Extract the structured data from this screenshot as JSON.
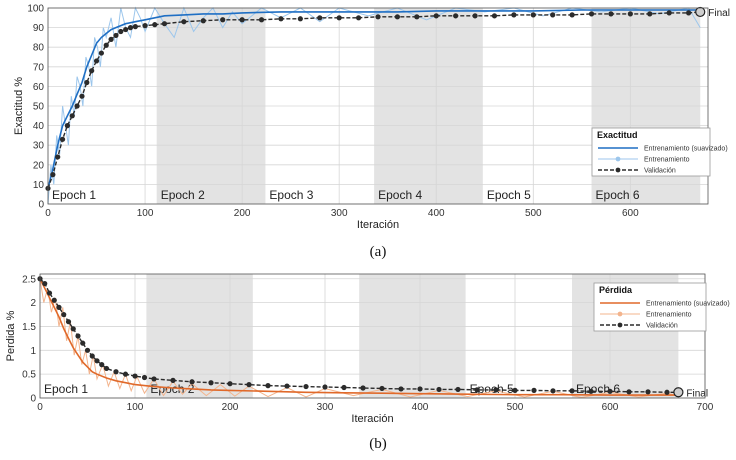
{
  "chart_data": [
    {
      "type": "line",
      "caption": "(a)",
      "xlabel": "Iteración",
      "ylabel": "Exactitud %",
      "xlim": [
        0,
        680
      ],
      "ylim": [
        0,
        100
      ],
      "xticks": [
        0,
        100,
        200,
        300,
        400,
        500,
        600
      ],
      "yticks": [
        0,
        10,
        20,
        30,
        40,
        50,
        60,
        70,
        80,
        90,
        100
      ],
      "grid": true,
      "epochs": [
        {
          "label": "Epoch 1",
          "start": 0,
          "end": 112,
          "shaded": false
        },
        {
          "label": "Epoch 2",
          "start": 112,
          "end": 224,
          "shaded": true
        },
        {
          "label": "Epoch 3",
          "start": 224,
          "end": 336,
          "shaded": false
        },
        {
          "label": "Epoch 4",
          "start": 336,
          "end": 448,
          "shaded": true
        },
        {
          "label": "Epoch 5",
          "start": 448,
          "end": 560,
          "shaded": false
        },
        {
          "label": "Epoch 6",
          "start": 560,
          "end": 672,
          "shaded": true
        }
      ],
      "legend": {
        "title": "Exactitud",
        "placement": "right",
        "entries": [
          "Entrenamiento (suavizado)",
          "Entrenamiento",
          "Validación"
        ]
      },
      "final_label": "Final",
      "series": [
        {
          "name": "Entrenamiento (suavizado)",
          "color": "#1f6fc4",
          "x": [
            0,
            5,
            10,
            15,
            20,
            25,
            30,
            35,
            40,
            45,
            50,
            55,
            60,
            65,
            70,
            80,
            90,
            100,
            110,
            120,
            140,
            160,
            180,
            200,
            240,
            280,
            320,
            360,
            400,
            450,
            500,
            550,
            600,
            640,
            672
          ],
          "y": [
            8,
            18,
            30,
            40,
            45,
            50,
            56,
            62,
            70,
            76,
            82,
            85,
            87,
            89,
            90,
            92,
            93,
            94,
            95,
            96,
            96.5,
            97,
            97,
            97.5,
            98,
            98,
            98,
            98,
            98.5,
            98.5,
            98.5,
            99,
            99,
            99,
            99
          ]
        },
        {
          "name": "Entrenamiento",
          "color": "#9cc6ec",
          "x": [
            0,
            3,
            6,
            9,
            12,
            15,
            18,
            21,
            24,
            27,
            30,
            33,
            36,
            39,
            42,
            45,
            48,
            51,
            54,
            57,
            60,
            65,
            70,
            75,
            80,
            85,
            90,
            95,
            100,
            110,
            120,
            130,
            140,
            150,
            160,
            170,
            180,
            190,
            200,
            220,
            240,
            260,
            280,
            300,
            330,
            360,
            390,
            420,
            450,
            480,
            510,
            540,
            570,
            600,
            630,
            660,
            672
          ],
          "y": [
            0,
            20,
            10,
            35,
            25,
            50,
            40,
            30,
            55,
            45,
            65,
            60,
            50,
            75,
            70,
            60,
            85,
            80,
            70,
            90,
            85,
            95,
            80,
            100,
            90,
            85,
            100,
            95,
            88,
            100,
            92,
            85,
            100,
            88,
            95,
            100,
            90,
            98,
            92,
            100,
            95,
            100,
            93,
            100,
            96,
            100,
            94,
            100,
            98,
            100,
            96,
            100,
            98,
            100,
            97,
            100,
            90
          ]
        },
        {
          "name": "Validación",
          "color": "#2b2b2b",
          "x": [
            0,
            5,
            10,
            15,
            20,
            25,
            30,
            35,
            40,
            45,
            50,
            55,
            60,
            65,
            70,
            75,
            80,
            85,
            90,
            100,
            110,
            120,
            140,
            160,
            180,
            200,
            220,
            240,
            260,
            280,
            300,
            320,
            340,
            360,
            380,
            400,
            420,
            440,
            460,
            480,
            500,
            520,
            540,
            560,
            580,
            600,
            620,
            640,
            660,
            672
          ],
          "y": [
            8,
            15,
            24,
            33,
            40,
            45,
            50,
            55,
            62,
            68,
            73,
            77,
            81,
            84,
            86,
            88,
            89,
            90,
            90.5,
            91,
            91.5,
            92,
            93,
            93.5,
            94,
            94,
            94,
            94.5,
            94.5,
            95,
            95,
            95,
            95.5,
            95.5,
            95.5,
            96,
            96,
            96,
            96,
            96.5,
            96.5,
            96.5,
            96.5,
            97,
            97,
            97,
            97,
            97.5,
            97.5,
            98
          ]
        }
      ]
    },
    {
      "type": "line",
      "caption": "(b)",
      "xlabel": "Iteración",
      "ylabel": "Perdida %",
      "xlim": [
        0,
        700
      ],
      "ylim": [
        0,
        2.6
      ],
      "xticks": [
        0,
        100,
        200,
        300,
        400,
        500,
        600,
        700
      ],
      "yticks": [
        0,
        0.5,
        1,
        1.5,
        2,
        2.5
      ],
      "grid": true,
      "epochs": [
        {
          "label": "Epoch 1",
          "start": 0,
          "end": 112,
          "shaded": false
        },
        {
          "label": "Epoch 2",
          "start": 112,
          "end": 224,
          "shaded": true
        },
        {
          "label": "",
          "start": 224,
          "end": 336,
          "shaded": false
        },
        {
          "label": "",
          "start": 336,
          "end": 448,
          "shaded": true
        },
        {
          "label": "Epoch 5",
          "start": 448,
          "end": 560,
          "shaded": false
        },
        {
          "label": "Epoch 6",
          "start": 560,
          "end": 672,
          "shaded": true
        }
      ],
      "legend": {
        "title": "Pérdida",
        "placement": "top-right",
        "entries": [
          "Entrenamiento (suavizado)",
          "Entrenamiento",
          "Validación"
        ]
      },
      "final_label": "Final",
      "series": [
        {
          "name": "Entrenamiento (suavizado)",
          "color": "#e0692a",
          "x": [
            0,
            5,
            10,
            15,
            20,
            25,
            30,
            35,
            40,
            45,
            50,
            55,
            60,
            70,
            80,
            90,
            100,
            120,
            140,
            160,
            180,
            200,
            240,
            280,
            320,
            360,
            400,
            450,
            500,
            550,
            600,
            640,
            672
          ],
          "y": [
            2.5,
            2.3,
            2.1,
            1.9,
            1.7,
            1.45,
            1.25,
            1.05,
            0.9,
            0.75,
            0.65,
            0.55,
            0.5,
            0.42,
            0.36,
            0.32,
            0.28,
            0.24,
            0.21,
            0.19,
            0.17,
            0.16,
            0.14,
            0.12,
            0.11,
            0.1,
            0.09,
            0.08,
            0.07,
            0.07,
            0.06,
            0.06,
            0.06
          ]
        },
        {
          "name": "Entrenamiento",
          "color": "#f3b48d",
          "x": [
            0,
            4,
            8,
            12,
            16,
            20,
            24,
            28,
            32,
            36,
            40,
            44,
            48,
            52,
            56,
            60,
            66,
            72,
            78,
            84,
            90,
            96,
            102,
            110,
            120,
            130,
            140,
            150,
            160,
            175,
            190,
            205,
            220,
            240,
            260,
            280,
            300,
            330,
            360,
            390,
            420,
            450,
            480,
            510,
            540,
            570,
            600,
            630,
            660,
            672
          ],
          "y": [
            2.5,
            2.0,
            2.3,
            1.8,
            2.1,
            1.5,
            1.9,
            1.2,
            1.6,
            0.9,
            1.3,
            0.7,
            1.0,
            0.5,
            0.9,
            0.4,
            0.7,
            0.25,
            0.55,
            0.2,
            0.5,
            0.15,
            0.45,
            0.1,
            0.4,
            0.05,
            0.35,
            0.08,
            0.3,
            0.05,
            0.28,
            0.04,
            0.25,
            0.03,
            0.22,
            0.02,
            0.2,
            0.05,
            0.18,
            0.02,
            0.16,
            0.03,
            0.15,
            0.02,
            0.14,
            0.01,
            0.12,
            0.02,
            0.1,
            0.05
          ]
        },
        {
          "name": "Validación",
          "color": "#2b2b2b",
          "x": [
            0,
            5,
            10,
            15,
            20,
            25,
            30,
            35,
            40,
            45,
            50,
            55,
            60,
            65,
            70,
            80,
            90,
            100,
            110,
            120,
            140,
            160,
            180,
            200,
            220,
            240,
            260,
            280,
            300,
            320,
            340,
            360,
            380,
            400,
            420,
            440,
            460,
            480,
            500,
            520,
            540,
            560,
            580,
            600,
            620,
            640,
            660,
            672
          ],
          "y": [
            2.5,
            2.4,
            2.2,
            2.05,
            1.9,
            1.75,
            1.6,
            1.45,
            1.3,
            1.15,
            1.0,
            0.88,
            0.78,
            0.7,
            0.62,
            0.55,
            0.5,
            0.46,
            0.43,
            0.4,
            0.37,
            0.34,
            0.32,
            0.3,
            0.28,
            0.26,
            0.25,
            0.24,
            0.23,
            0.22,
            0.21,
            0.2,
            0.19,
            0.19,
            0.18,
            0.18,
            0.17,
            0.17,
            0.16,
            0.16,
            0.15,
            0.15,
            0.14,
            0.14,
            0.13,
            0.13,
            0.12,
            0.12
          ]
        }
      ]
    }
  ]
}
